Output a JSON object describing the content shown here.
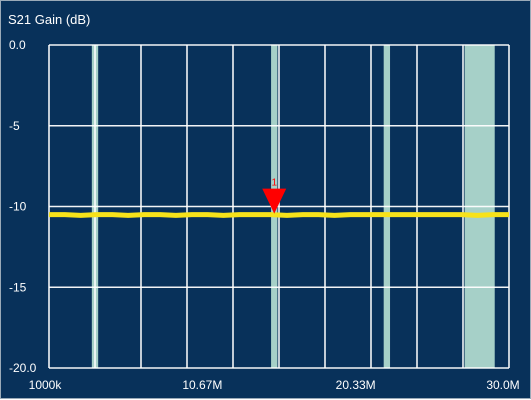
{
  "chart_data": {
    "type": "line",
    "title": "S21 Gain (dB)",
    "xlabel": "",
    "ylabel": "",
    "x_start_hz": 1000000,
    "x_stop_hz": 30000000,
    "ylim": [
      -20,
      0
    ],
    "xtick_labels": [
      "1000k",
      "10.67M",
      "20.33M",
      "30.0M"
    ],
    "ytick_labels": [
      "0.0",
      "-5",
      "-10",
      "-15",
      "-20.0"
    ],
    "series": [
      {
        "values": [
          [
            1000000,
            -10.5
          ],
          [
            2000000,
            -10.5
          ],
          [
            3000000,
            -10.55
          ],
          [
            4000000,
            -10.5
          ],
          [
            5000000,
            -10.5
          ],
          [
            6000000,
            -10.55
          ],
          [
            7000000,
            -10.5
          ],
          [
            8000000,
            -10.5
          ],
          [
            9000000,
            -10.55
          ],
          [
            10000000,
            -10.5
          ],
          [
            11000000,
            -10.5
          ],
          [
            12000000,
            -10.55
          ],
          [
            13000000,
            -10.5
          ],
          [
            14000000,
            -10.5
          ],
          [
            15000000,
            -10.5
          ],
          [
            16000000,
            -10.55
          ],
          [
            17000000,
            -10.5
          ],
          [
            18000000,
            -10.5
          ],
          [
            19000000,
            -10.55
          ],
          [
            20000000,
            -10.5
          ],
          [
            21000000,
            -10.5
          ],
          [
            22000000,
            -10.5
          ],
          [
            23000000,
            -10.5
          ],
          [
            24000000,
            -10.5
          ],
          [
            25000000,
            -10.5
          ],
          [
            26000000,
            -10.5
          ],
          [
            27000000,
            -10.5
          ],
          [
            28000000,
            -10.55
          ],
          [
            29000000,
            -10.5
          ],
          [
            30000000,
            -10.5
          ]
        ]
      }
    ],
    "markers": [
      {
        "label": "1",
        "x": 15200000,
        "y": -10.5
      }
    ],
    "highlight_bands_hz": [
      [
        3700000,
        4100000
      ],
      [
        15000000,
        15400000
      ],
      [
        22100000,
        22500000
      ],
      [
        27200000,
        29100000
      ]
    ],
    "grid": true,
    "colors": {
      "background": "#08315a",
      "grid": "#ffffff",
      "band": "#a6d0c8",
      "trace": "#f7e21a",
      "marker": "#ff0000",
      "text": "#ffffff"
    }
  }
}
